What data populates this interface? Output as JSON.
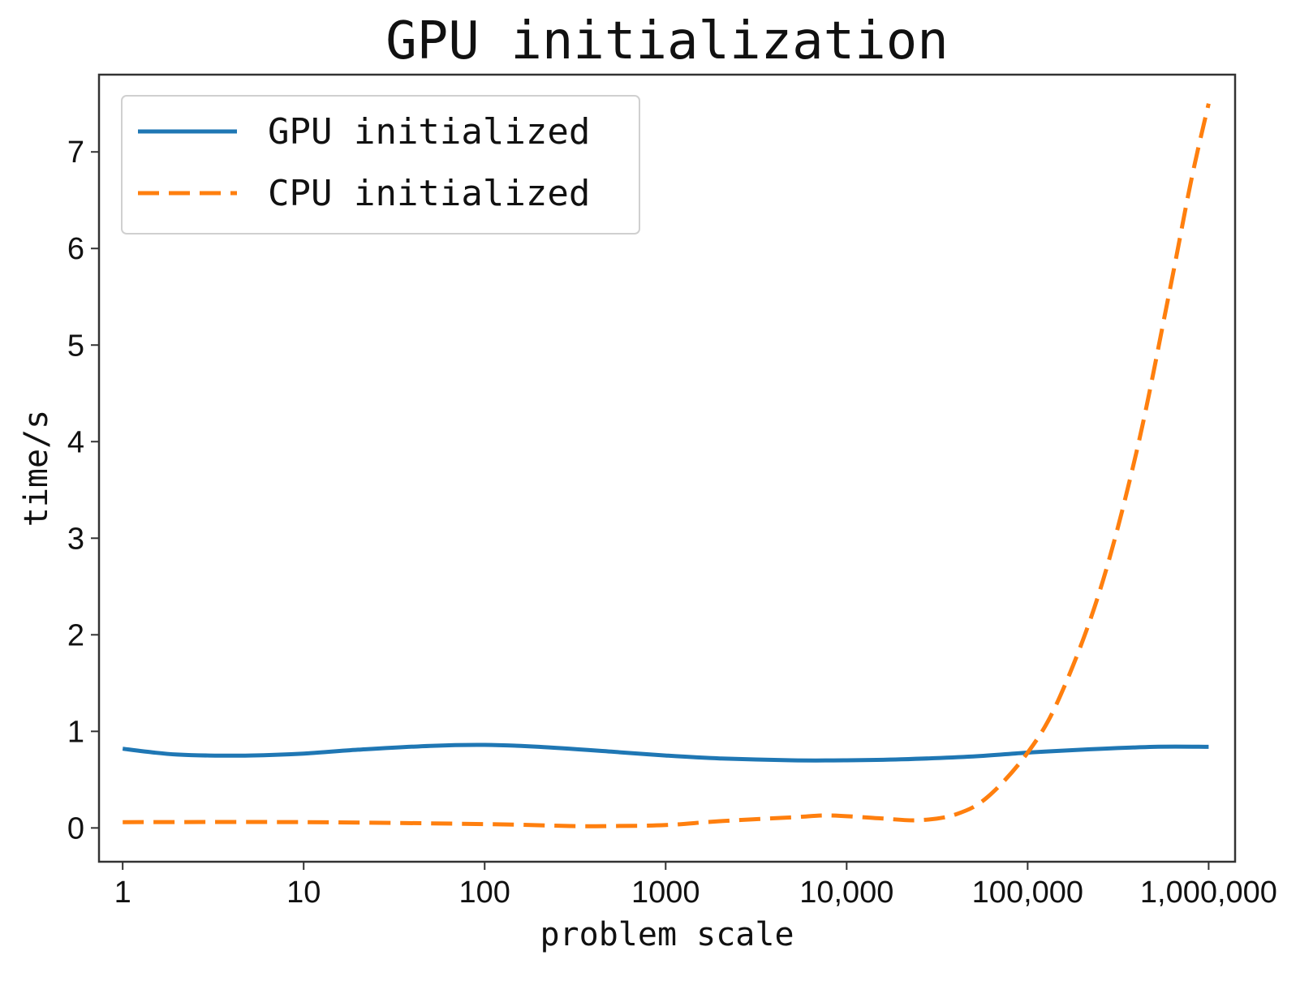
{
  "chart_data": {
    "type": "line",
    "title": "GPU initialization",
    "xlabel": "problem scale",
    "ylabel": "time/s",
    "xscale": "log",
    "xlim": [
      0.74,
      1400000
    ],
    "ylim": [
      -0.35,
      7.8
    ],
    "xticks": [
      1,
      10,
      100,
      1000,
      10000,
      100000,
      1000000
    ],
    "xtick_labels": [
      "1",
      "10",
      "100",
      "1000",
      "10,000",
      "100,000",
      "1,000,000"
    ],
    "yticks": [
      0,
      1,
      2,
      3,
      4,
      5,
      6,
      7
    ],
    "ytick_labels": [
      "0",
      "1",
      "2",
      "3",
      "4",
      "5",
      "6",
      "7"
    ],
    "grid": false,
    "legend_position": "upper-left",
    "series": [
      {
        "name": "GPU initialized",
        "color": "#1f77b4",
        "style": "solid",
        "x": [
          1,
          1.5,
          2,
          3,
          5,
          10,
          20,
          50,
          100,
          200,
          500,
          1000,
          2000,
          5000,
          10000,
          20000,
          50000,
          100000,
          200000,
          500000,
          1000000
        ],
        "y": [
          0.82,
          0.78,
          0.76,
          0.75,
          0.75,
          0.77,
          0.81,
          0.85,
          0.86,
          0.84,
          0.79,
          0.75,
          0.72,
          0.7,
          0.7,
          0.71,
          0.74,
          0.78,
          0.81,
          0.84,
          0.84
        ]
      },
      {
        "name": "CPU initialized",
        "color": "#ff7f0e",
        "style": "dashed",
        "x": [
          1,
          10,
          100,
          300,
          500,
          1000,
          2000,
          5000,
          8000,
          15000,
          25000,
          40000,
          60000,
          100000,
          150000,
          250000,
          400000,
          600000,
          800000,
          1000000
        ],
        "y": [
          0.06,
          0.06,
          0.04,
          0.02,
          0.02,
          0.03,
          0.07,
          0.11,
          0.13,
          0.1,
          0.08,
          0.14,
          0.32,
          0.78,
          1.35,
          2.45,
          3.9,
          5.5,
          6.7,
          7.5
        ]
      }
    ]
  }
}
